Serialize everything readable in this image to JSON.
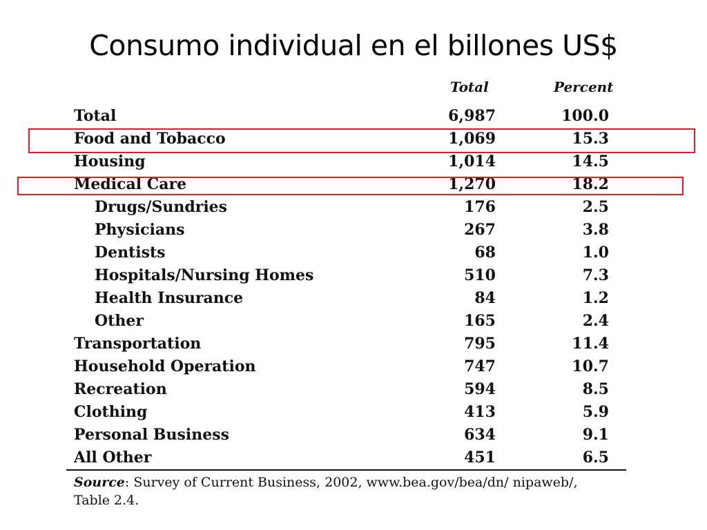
{
  "slide": {
    "title": "Consumo individual en el billones US$"
  },
  "table": {
    "columns": {
      "total": "Total",
      "percent": "Percent"
    },
    "rows": [
      {
        "category": "Total",
        "total": "6,987",
        "percent": "100.0",
        "indent": false
      },
      {
        "category": "Food and Tobacco",
        "total": "1,069",
        "percent": "15.3",
        "indent": false,
        "highlighted": true
      },
      {
        "category": "Housing",
        "total": "1,014",
        "percent": "14.5",
        "indent": false
      },
      {
        "category": "Medical Care",
        "total": "1,270",
        "percent": "18.2",
        "indent": false,
        "highlighted": true
      },
      {
        "category": "Drugs/Sundries",
        "total": "176",
        "percent": "2.5",
        "indent": true
      },
      {
        "category": "Physicians",
        "total": "267",
        "percent": "3.8",
        "indent": true
      },
      {
        "category": "Dentists",
        "total": "68",
        "percent": "1.0",
        "indent": true
      },
      {
        "category": "Hospitals/Nursing Homes",
        "total": "510",
        "percent": "7.3",
        "indent": true
      },
      {
        "category": "Health Insurance",
        "total": "84",
        "percent": "1.2",
        "indent": true
      },
      {
        "category": "Other",
        "total": "165",
        "percent": "2.4",
        "indent": true
      },
      {
        "category": "Transportation",
        "total": "795",
        "percent": "11.4",
        "indent": false
      },
      {
        "category": "Household Operation",
        "total": "747",
        "percent": "10.7",
        "indent": false
      },
      {
        "category": "Recreation",
        "total": "594",
        "percent": "8.5",
        "indent": false
      },
      {
        "category": "Clothing",
        "total": "413",
        "percent": "5.9",
        "indent": false
      },
      {
        "category": "Personal Business",
        "total": "634",
        "percent": "9.1",
        "indent": false
      },
      {
        "category": "All Other",
        "total": "451",
        "percent": "6.5",
        "indent": false
      }
    ]
  },
  "source": {
    "label": "Source",
    "text": ": Survey of Current Business, 2002, www.bea.gov/bea/dn/ nipaweb/, Table 2.4."
  },
  "colors": {
    "highlight": "#e8191c"
  }
}
